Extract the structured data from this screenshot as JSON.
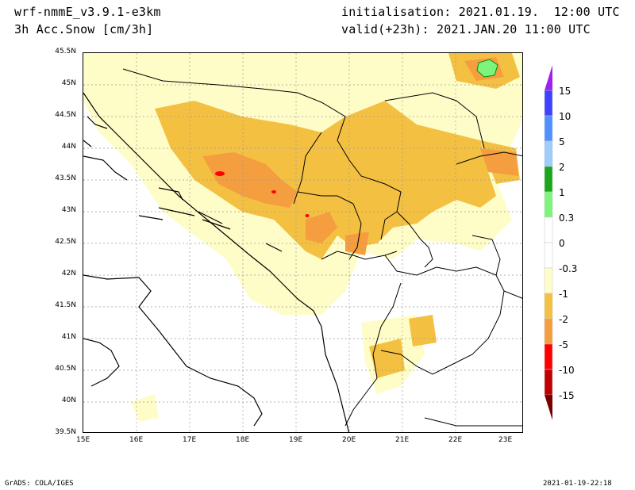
{
  "header": {
    "model": "wrf-nmmE_v3.9.1-e3km",
    "variable": "3h Acc.Snow [cm/3h]",
    "init": "initialisation: 2021.01.19.  12:00 UTC",
    "valid": "valid(+23h): 2021.JAN.20 11:00 UTC"
  },
  "map": {
    "lat_labels": [
      "45.5N",
      "45N",
      "44.5N",
      "44N",
      "43.5N",
      "43N",
      "42.5N",
      "42N",
      "41.5N",
      "41N",
      "40.5N",
      "40N",
      "39.5N"
    ],
    "lon_labels": [
      "15E",
      "16E",
      "17E",
      "18E",
      "19E",
      "20E",
      "21E",
      "22E",
      "23E"
    ]
  },
  "legend": {
    "labels": [
      "15",
      "10",
      "5",
      "2",
      "1",
      "0.3",
      "0",
      "-0.3",
      "-1",
      "-2",
      "-5",
      "-10",
      "-15"
    ],
    "colors": {
      "top_triangle": "#a020f0",
      "bands": [
        "#4040ff",
        "#4f8fff",
        "#9ccdfd",
        "#1ba51b",
        "#7df57d",
        "#ffffff",
        "#ffffff",
        "#fefdc8",
        "#f4c042",
        "#f59e40",
        "#fe0000",
        "#c00000"
      ],
      "bottom_triangle": "#7a0000"
    }
  },
  "footer": {
    "left": "GrADS: COLA/IGES",
    "right": "2021-01-19-22:18"
  }
}
